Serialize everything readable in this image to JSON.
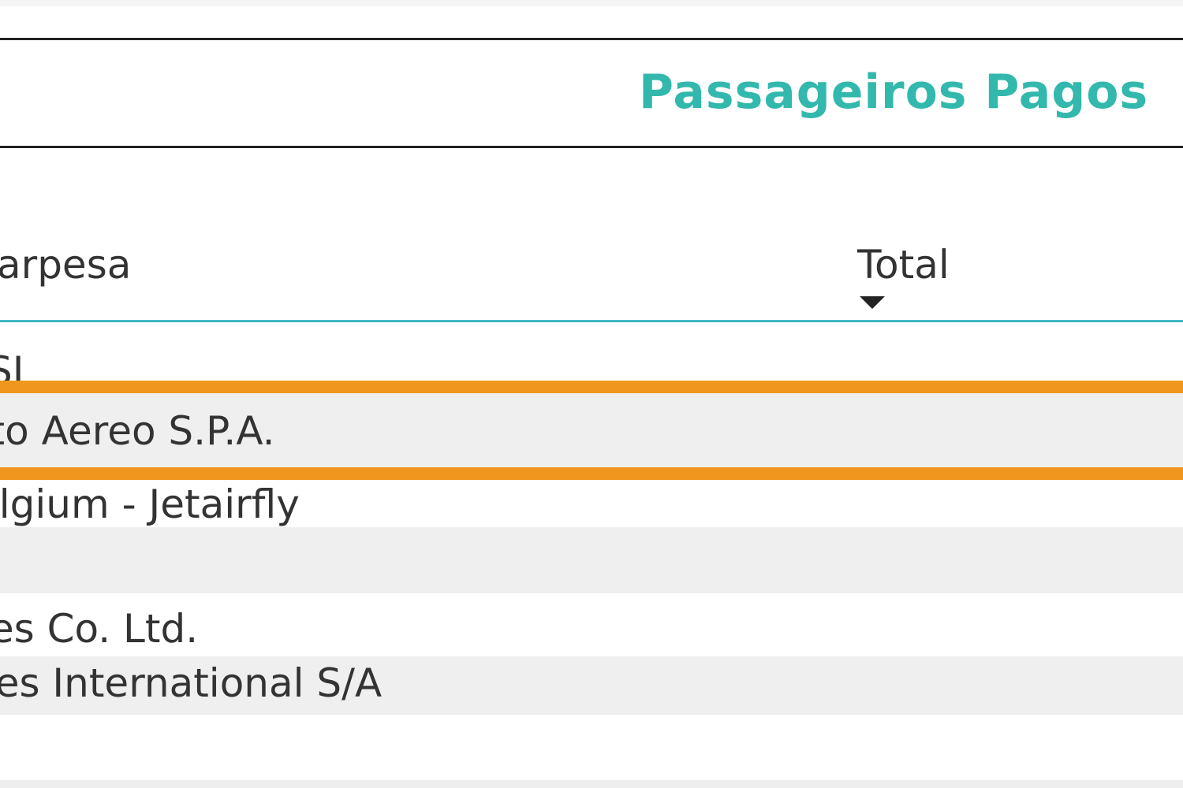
{
  "visual": {
    "title": "Passageiros Pagos",
    "title_color": "#32b8ac",
    "header_underline_color": "#41b8c4",
    "selection_color": "#f0951e"
  },
  "table": {
    "columns": [
      "arpesa",
      "Total"
    ],
    "sort": {
      "column": "Total",
      "direction": "descending",
      "icon": "sort-descending-icon"
    },
    "rows": [
      {
        "empresa": "SI",
        "total": "",
        "selected": false
      },
      {
        "empresa": "rto Aereo S.P.A.",
        "total": "",
        "selected": true
      },
      {
        "empresa": "elgium - Jetairfly",
        "total": "",
        "selected": false
      },
      {
        "empresa": "",
        "total": "",
        "selected": false
      },
      {
        "empresa": "ies Co. Ltd.",
        "total": "",
        "selected": false
      },
      {
        "empresa": "nes International S/A",
        "total": "",
        "selected": false
      }
    ]
  }
}
